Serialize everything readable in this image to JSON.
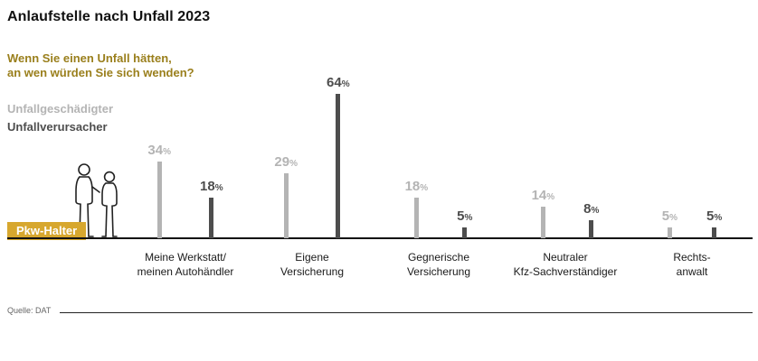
{
  "title": "Anlaufstelle nach Unfall 2023",
  "question": {
    "line1": "Wenn Sie einen Unfall hätten,",
    "line2": "an wen würden Sie sich wenden?"
  },
  "legend": {
    "series1": "Unfallgeschädigter",
    "series2": "Unfallverursacher"
  },
  "badge": {
    "label": "Pkw-Halter"
  },
  "source": "Quelle: DAT",
  "colors": {
    "gold": "#d7a72e",
    "question": "#9a7f1c",
    "light": "#b4b4b4",
    "dark": "#4d4d4d"
  },
  "chart_data": {
    "type": "bar",
    "title": "Anlaufstelle nach Unfall 2023",
    "unit": "%",
    "categories": [
      [
        "Meine Werkstatt/",
        "meinen Autohändler"
      ],
      [
        "Eigene",
        "Versicherung"
      ],
      [
        "Gegnerische",
        "Versicherung"
      ],
      [
        "Neutraler",
        "Kfz-Sachverständiger"
      ],
      [
        "Rechts-",
        "anwalt"
      ]
    ],
    "series": [
      {
        "name": "Unfallgeschädigter",
        "values": [
          34,
          29,
          18,
          14,
          5
        ]
      },
      {
        "name": "Unfallverursacher",
        "values": [
          18,
          64,
          5,
          8,
          5
        ]
      }
    ],
    "ylim": [
      0,
      70
    ],
    "grid": false,
    "legend_position": "top-left"
  }
}
